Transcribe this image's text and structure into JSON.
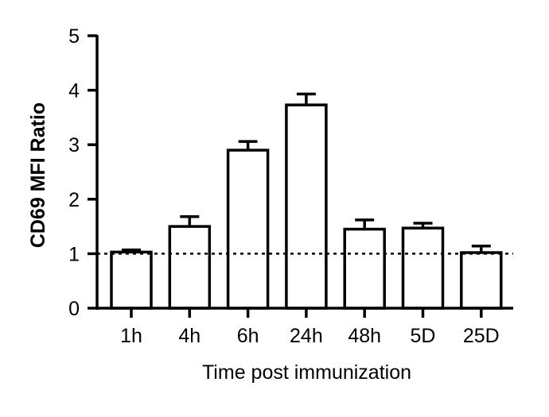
{
  "chart_data": {
    "type": "bar",
    "categories": [
      "1h",
      "4h",
      "6h",
      "24h",
      "48h",
      "5D",
      "25D"
    ],
    "values": [
      1.03,
      1.5,
      2.9,
      3.73,
      1.45,
      1.47,
      1.02
    ],
    "error": [
      0.04,
      0.18,
      0.16,
      0.2,
      0.17,
      0.09,
      0.12
    ],
    "xlabel": "Time post immunization",
    "ylabel": "CD69 MFI Ratio",
    "ylim": [
      0,
      5
    ],
    "yticks": [
      "0",
      "1",
      "2",
      "3",
      "4",
      "5"
    ],
    "reference_line": 1,
    "grid": false,
    "colors": {
      "bar_fill": "#ffffff",
      "stroke": "#000000"
    }
  }
}
